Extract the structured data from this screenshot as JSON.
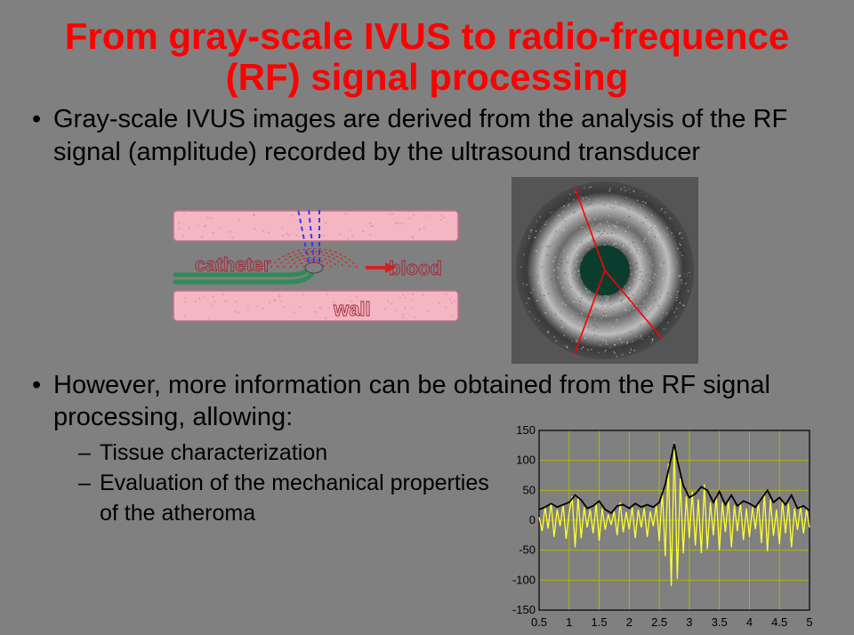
{
  "title": "From gray-scale IVUS to radio-frequence (RF) signal processing",
  "bullet1": "Gray-scale IVUS images are derived from the analysis of the RF signal (amplitude) recorded by the ultrasound transducer",
  "bullet2": "However, more information can be obtained from the RF signal processing, allowing:",
  "sub1": "Tissue characterization",
  "sub2": "Evaluation of the mechanical properties",
  "sub_tail": "of the atheroma",
  "vessel": {
    "labels": {
      "catheter": "catheter",
      "blood": "blood",
      "wall": "wall"
    },
    "colors": {
      "wall_fill": "#f4b6c2",
      "wall_stroke": "#c07088",
      "lumen": "#ffffff",
      "catheter_stroke": "#2e8b57",
      "tip_fill": "#808080",
      "wave_red": "#d62020",
      "beam_blue": "#2a3cff"
    }
  },
  "ivus": {
    "colors": {
      "bg": "#555555",
      "ring_light": "#bdbdbd",
      "ring_dark": "#3a3a3a",
      "center": "#0b3d2e",
      "line": "#ff0000"
    },
    "radial_lines_deg": [
      50,
      110,
      250
    ]
  },
  "chart": {
    "colors": {
      "bg": "#808080",
      "grid": "#b8b800",
      "axis": "#000000",
      "raw": "#ffff33",
      "env": "#000000",
      "xlabel": "#000000",
      "ylabel": "#000000"
    },
    "xlim": [
      0.5,
      5.0
    ],
    "ylim": [
      -150,
      150
    ],
    "xticks": [
      0.5,
      1,
      1.5,
      2,
      2.5,
      3,
      3.5,
      4,
      4.5,
      5
    ],
    "yticks": [
      -150,
      -100,
      -50,
      0,
      50,
      100,
      150
    ],
    "label_fontsize": 13,
    "raw_series": [
      [
        0.5,
        5
      ],
      [
        0.55,
        -18
      ],
      [
        0.6,
        22
      ],
      [
        0.65,
        -14
      ],
      [
        0.7,
        30
      ],
      [
        0.75,
        -28
      ],
      [
        0.8,
        18
      ],
      [
        0.85,
        -10
      ],
      [
        0.9,
        26
      ],
      [
        0.95,
        -31
      ],
      [
        1.0,
        12
      ],
      [
        1.05,
        40
      ],
      [
        1.1,
        -45
      ],
      [
        1.15,
        38
      ],
      [
        1.2,
        -30
      ],
      [
        1.25,
        22
      ],
      [
        1.3,
        -12
      ],
      [
        1.35,
        18
      ],
      [
        1.4,
        -22
      ],
      [
        1.45,
        28
      ],
      [
        1.5,
        -34
      ],
      [
        1.55,
        20
      ],
      [
        1.6,
        -16
      ],
      [
        1.65,
        10
      ],
      [
        1.7,
        -8
      ],
      [
        1.75,
        15
      ],
      [
        1.8,
        -25
      ],
      [
        1.85,
        30
      ],
      [
        1.9,
        -20
      ],
      [
        1.95,
        14
      ],
      [
        2.0,
        -15
      ],
      [
        2.05,
        22
      ],
      [
        2.1,
        -30
      ],
      [
        2.15,
        18
      ],
      [
        2.2,
        -12
      ],
      [
        2.25,
        20
      ],
      [
        2.3,
        -28
      ],
      [
        2.35,
        15
      ],
      [
        2.4,
        -10
      ],
      [
        2.45,
        24
      ],
      [
        2.5,
        -35
      ],
      [
        2.55,
        50
      ],
      [
        2.6,
        -60
      ],
      [
        2.65,
        95
      ],
      [
        2.7,
        -110
      ],
      [
        2.75,
        130
      ],
      [
        2.8,
        -98
      ],
      [
        2.85,
        70
      ],
      [
        2.9,
        -55
      ],
      [
        2.95,
        40
      ],
      [
        3.0,
        -30
      ],
      [
        3.05,
        48
      ],
      [
        3.1,
        -42
      ],
      [
        3.15,
        35
      ],
      [
        3.2,
        -55
      ],
      [
        3.25,
        60
      ],
      [
        3.3,
        -48
      ],
      [
        3.35,
        30
      ],
      [
        3.4,
        -25
      ],
      [
        3.45,
        42
      ],
      [
        3.5,
        -50
      ],
      [
        3.55,
        30
      ],
      [
        3.6,
        -20
      ],
      [
        3.65,
        35
      ],
      [
        3.7,
        -45
      ],
      [
        3.75,
        25
      ],
      [
        3.8,
        -18
      ],
      [
        3.85,
        30
      ],
      [
        3.9,
        -33
      ],
      [
        3.95,
        20
      ],
      [
        4.0,
        -28
      ],
      [
        4.05,
        22
      ],
      [
        4.1,
        -15
      ],
      [
        4.15,
        30
      ],
      [
        4.2,
        -38
      ],
      [
        4.25,
        45
      ],
      [
        4.3,
        -52
      ],
      [
        4.35,
        35
      ],
      [
        4.4,
        -26
      ],
      [
        4.45,
        18
      ],
      [
        4.5,
        -40
      ],
      [
        4.55,
        32
      ],
      [
        4.6,
        -22
      ],
      [
        4.65,
        28
      ],
      [
        4.7,
        -45
      ],
      [
        4.75,
        20
      ],
      [
        4.8,
        -16
      ],
      [
        4.85,
        24
      ],
      [
        4.9,
        -22
      ],
      [
        4.95,
        18
      ],
      [
        5.0,
        -12
      ]
    ],
    "env_series": [
      [
        0.5,
        18
      ],
      [
        0.6,
        22
      ],
      [
        0.7,
        28
      ],
      [
        0.8,
        22
      ],
      [
        0.9,
        26
      ],
      [
        1.0,
        30
      ],
      [
        1.1,
        42
      ],
      [
        1.2,
        34
      ],
      [
        1.3,
        20
      ],
      [
        1.4,
        24
      ],
      [
        1.5,
        32
      ],
      [
        1.6,
        18
      ],
      [
        1.7,
        12
      ],
      [
        1.8,
        24
      ],
      [
        1.9,
        26
      ],
      [
        2.0,
        20
      ],
      [
        2.1,
        28
      ],
      [
        2.2,
        22
      ],
      [
        2.3,
        26
      ],
      [
        2.4,
        22
      ],
      [
        2.5,
        30
      ],
      [
        2.6,
        60
      ],
      [
        2.7,
        105
      ],
      [
        2.75,
        128
      ],
      [
        2.8,
        100
      ],
      [
        2.9,
        58
      ],
      [
        3.0,
        38
      ],
      [
        3.1,
        44
      ],
      [
        3.2,
        56
      ],
      [
        3.3,
        50
      ],
      [
        3.4,
        30
      ],
      [
        3.5,
        48
      ],
      [
        3.6,
        26
      ],
      [
        3.7,
        42
      ],
      [
        3.8,
        24
      ],
      [
        3.9,
        32
      ],
      [
        4.0,
        28
      ],
      [
        4.1,
        22
      ],
      [
        4.2,
        36
      ],
      [
        4.3,
        50
      ],
      [
        4.4,
        30
      ],
      [
        4.5,
        38
      ],
      [
        4.6,
        26
      ],
      [
        4.7,
        42
      ],
      [
        4.8,
        20
      ],
      [
        4.9,
        24
      ],
      [
        5.0,
        16
      ]
    ]
  }
}
